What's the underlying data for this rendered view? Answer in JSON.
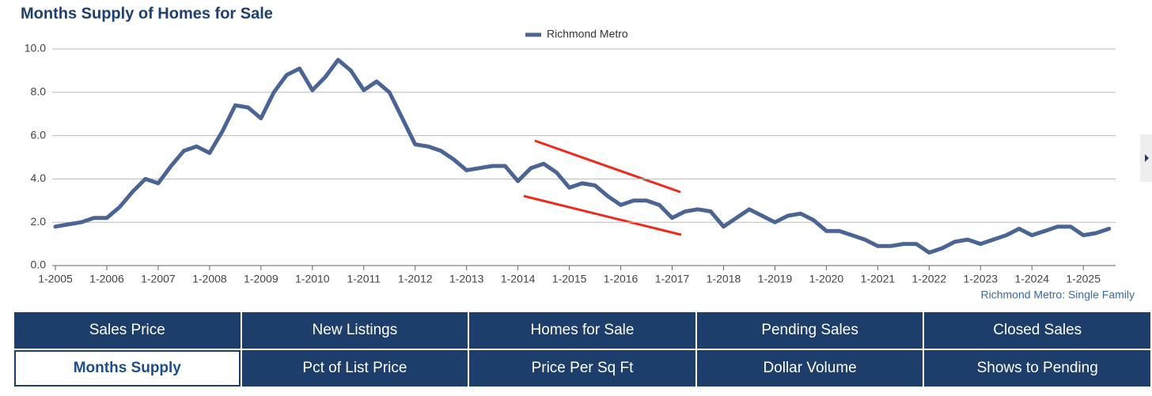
{
  "chart_data": {
    "type": "line",
    "title": "Months Supply of Homes for Sale",
    "footnote": "Richmond Metro: Single Family",
    "categories": [
      "1-2005",
      null,
      null,
      null,
      "1-2006",
      null,
      null,
      null,
      "1-2007",
      null,
      null,
      null,
      "1-2008",
      null,
      null,
      null,
      "1-2009",
      null,
      null,
      null,
      "1-2010",
      null,
      null,
      null,
      "1-2011",
      null,
      null,
      null,
      "1-2012",
      null,
      null,
      null,
      "1-2013",
      null,
      null,
      null,
      "1-2014",
      null,
      null,
      null,
      "1-2015",
      null,
      null,
      null,
      "1-2016",
      null,
      null,
      null,
      "1-2017",
      null,
      null,
      null,
      "1-2018",
      null,
      null,
      null,
      "1-2019",
      null,
      null,
      null,
      "1-2020",
      null,
      null,
      null,
      "1-2021",
      null,
      null,
      null,
      "1-2022",
      null,
      null,
      null,
      "1-2023",
      null,
      null,
      null,
      "1-2024",
      null,
      null,
      null,
      "1-2025",
      null,
      null
    ],
    "series": [
      {
        "name": "Richmond Metro",
        "color": "#4a6494",
        "values": [
          1.8,
          1.9,
          2.0,
          2.2,
          2.2,
          2.7,
          3.4,
          4.0,
          3.8,
          4.6,
          5.3,
          5.5,
          5.2,
          6.2,
          7.4,
          7.3,
          6.8,
          8.0,
          8.8,
          9.1,
          8.1,
          8.7,
          9.5,
          9.0,
          8.1,
          8.5,
          8.0,
          6.8,
          5.6,
          5.5,
          5.3,
          4.9,
          4.4,
          4.5,
          4.6,
          4.6,
          3.9,
          4.5,
          4.7,
          4.3,
          3.6,
          3.8,
          3.7,
          3.2,
          2.8,
          3.0,
          3.0,
          2.8,
          2.2,
          2.5,
          2.6,
          2.5,
          1.8,
          2.2,
          2.6,
          2.3,
          2.0,
          2.3,
          2.4,
          2.1,
          1.6,
          1.6,
          1.4,
          1.2,
          0.9,
          0.9,
          1.0,
          1.0,
          0.6,
          0.8,
          1.1,
          1.2,
          1.0,
          1.2,
          1.4,
          1.7,
          1.4,
          1.6,
          1.8,
          1.8,
          1.4,
          1.5,
          1.7
        ]
      }
    ],
    "ylim": [
      0,
      10
    ],
    "yticks": [
      {
        "value": 0,
        "label": "0.0"
      },
      {
        "value": 2,
        "label": "2.0"
      },
      {
        "value": 4,
        "label": "4.0"
      },
      {
        "value": 6,
        "label": "6.0"
      },
      {
        "value": 8,
        "label": "8.0"
      },
      {
        "value": 10,
        "label": "10.0"
      }
    ],
    "grid": true,
    "legend": "top"
  },
  "tabs": [
    "Sales Price",
    "New Listings",
    "Homes for Sale",
    "Pending Sales",
    "Closed Sales",
    "Months Supply",
    "Pct of List Price",
    "Price Per Sq Ft",
    "Dollar Volume",
    "Shows to Pending"
  ]
}
